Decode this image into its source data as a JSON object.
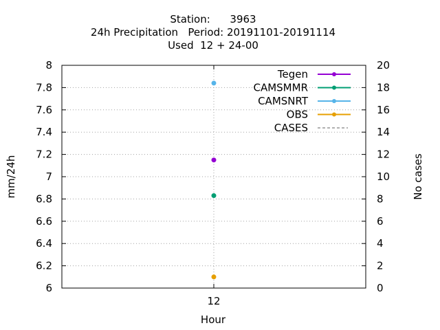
{
  "chart_data": {
    "type": "scatter",
    "title_lines": [
      "Station:      3963",
      "24h Precipitation   Period: 20191101-20191114",
      "Used  12 + 24-00"
    ],
    "xlabel": "Hour",
    "ylabel": "mm/24h",
    "y2label": "No cases",
    "x_categories": [
      "12"
    ],
    "ylim": [
      6,
      8
    ],
    "y_ticks": [
      "6",
      "6.2",
      "6.4",
      "6.6",
      "6.8",
      "7",
      "7.2",
      "7.4",
      "7.6",
      "7.8",
      "8"
    ],
    "y2lim": [
      0,
      20
    ],
    "y2_ticks": [
      "0",
      "2",
      "4",
      "6",
      "8",
      "10",
      "12",
      "14",
      "16",
      "18",
      "20"
    ],
    "grid": true,
    "legend_position": "top-right",
    "series": [
      {
        "name": "Tegen",
        "color": "#9400d3",
        "x": "12",
        "y": 7.15
      },
      {
        "name": "CAMSMMR",
        "color": "#009e73",
        "x": "12",
        "y": 6.83
      },
      {
        "name": "CAMSNRT",
        "color": "#56b4e9",
        "x": "12",
        "y": 7.84
      },
      {
        "name": "OBS",
        "color": "#e69f00",
        "x": "12",
        "y": 6.1
      },
      {
        "name": "CASES",
        "color": "#808080",
        "dashed": true
      }
    ]
  }
}
